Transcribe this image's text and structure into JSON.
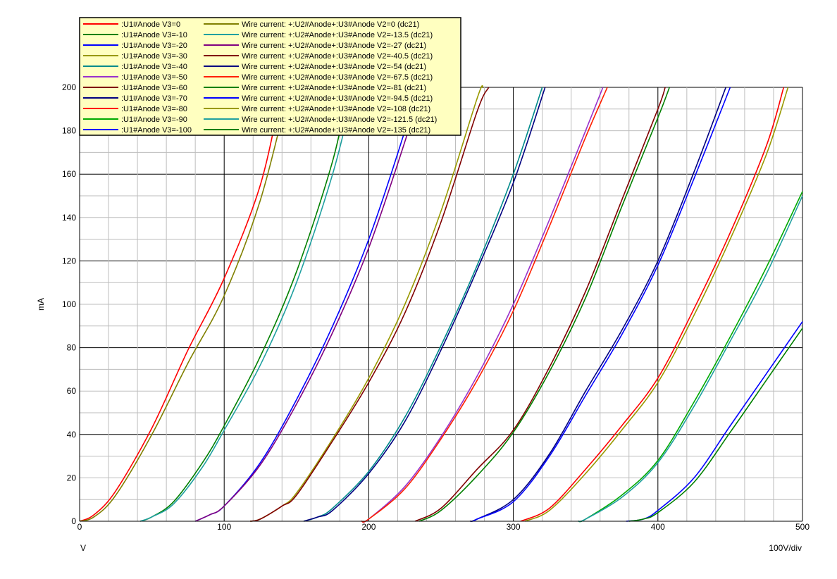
{
  "chart_data": {
    "type": "line",
    "xlabel": "V",
    "ylabel": "mA",
    "x_scale_note": "100V/div",
    "xlim": [
      0,
      500
    ],
    "ylim": [
      0,
      200
    ],
    "xticks": [
      0,
      100,
      200,
      300,
      400,
      500
    ],
    "yticks": [
      0,
      20,
      40,
      60,
      80,
      100,
      120,
      140,
      160,
      180,
      200
    ],
    "grid": true,
    "legend_position": "top-left",
    "legend_columns": [
      [
        {
          "label": ":U1#Anode V3=0",
          "color": "#ff0000"
        },
        {
          "label": ":U1#Anode V3=-10",
          "color": "#008000"
        },
        {
          "label": ":U1#Anode V3=-20",
          "color": "#0000ff"
        },
        {
          "label": ":U1#Anode V3=-30",
          "color": "#999900"
        },
        {
          "label": ":U1#Anode V3=-40",
          "color": "#008b8b"
        },
        {
          "label": ":U1#Anode V3=-50",
          "color": "#9932cc"
        },
        {
          "label": ":U1#Anode V3=-60",
          "color": "#800000"
        },
        {
          "label": ":U1#Anode V3=-70",
          "color": "#000080"
        },
        {
          "label": ":U1#Anode V3=-80",
          "color": "#ff0000"
        },
        {
          "label": ":U1#Anode V3=-90",
          "color": "#00aa00"
        },
        {
          "label": ":U1#Anode V3=-100",
          "color": "#0000ff"
        }
      ],
      [
        {
          "label": "Wire current: +:U2#Anode+:U3#Anode V2=0 (dc21)",
          "color": "#808000"
        },
        {
          "label": "Wire current: +:U2#Anode+:U3#Anode V2=-13.5 (dc21)",
          "color": "#20a0a0"
        },
        {
          "label": "Wire current: +:U2#Anode+:U3#Anode V2=-27 (dc21)",
          "color": "#800080"
        },
        {
          "label": "Wire current: +:U2#Anode+:U3#Anode V2=-40.5 (dc21)",
          "color": "#800000"
        },
        {
          "label": "Wire current: +:U2#Anode+:U3#Anode V2=-54 (dc21)",
          "color": "#000080"
        },
        {
          "label": "Wire current: +:U2#Anode+:U3#Anode V2=-67.5 (dc21)",
          "color": "#ff2000"
        },
        {
          "label": "Wire current: +:U2#Anode+:U3#Anode V2=-81 (dc21)",
          "color": "#008000"
        },
        {
          "label": "Wire current: +:U2#Anode+:U3#Anode V2=-94.5 (dc21)",
          "color": "#0000ff"
        },
        {
          "label": "Wire current: +:U2#Anode+:U3#Anode V2=-108 (dc21)",
          "color": "#999900"
        },
        {
          "label": "Wire current: +:U2#Anode+:U3#Anode V2=-121.5 (dc21)",
          "color": "#20a0a0"
        },
        {
          "label": "Wire current: +:U2#Anode+:U3#Anode V2=-135 (dc21)",
          "color": "#008000"
        }
      ]
    ],
    "curve_family_note": "Each curve starts at 0 mA at cutoff voltage x0 and rises roughly as a power law; points estimated from gridlines.",
    "series": [
      {
        "name": ":U1#Anode V3=0",
        "color": "#ff0000",
        "x": [
          0,
          10,
          25,
          50,
          75,
          100,
          125,
          140
        ],
        "y": [
          0,
          3,
          14,
          43,
          79,
          112,
          155,
          200
        ]
      },
      {
        "name": "Wire current: +:U2#Anode+:U3#Anode V2=0 (dc21)",
        "color": "#808000",
        "x": [
          0,
          10,
          25,
          50,
          75,
          100,
          125,
          145
        ],
        "y": [
          0,
          2,
          12,
          40,
          73,
          104,
          148,
          200
        ]
      },
      {
        "name": ":U1#Anode V3=-10",
        "color": "#008000",
        "x": [
          42,
          50,
          65,
          85,
          100,
          125,
          150,
          175,
          186
        ],
        "y": [
          0,
          2,
          9,
          27,
          44,
          76,
          115,
          166,
          200
        ]
      },
      {
        "name": "Wire current: +:U2#Anode+:U3#Anode V2=-13.5 (dc21)",
        "color": "#20a0a0",
        "x": [
          42,
          50,
          65,
          85,
          100,
          125,
          150,
          175,
          190
        ],
        "y": [
          0,
          2,
          8,
          25,
          42,
          72,
          110,
          160,
          200
        ]
      },
      {
        "name": ":U1#Anode V3=-20",
        "color": "#0000ff",
        "x": [
          80,
          90,
          100,
          125,
          150,
          175,
          200,
          225,
          233
        ],
        "y": [
          0,
          3,
          7,
          27,
          56,
          90,
          130,
          180,
          200
        ]
      },
      {
        "name": "Wire current: +:U2#Anode+:U3#Anode V2=-27 (dc21)",
        "color": "#800080",
        "x": [
          80,
          90,
          100,
          125,
          150,
          175,
          200,
          225,
          236
        ],
        "y": [
          0,
          3,
          7,
          26,
          54,
          87,
          126,
          175,
          200
        ]
      },
      {
        "name": ":U1#Anode V3=-30",
        "color": "#999900",
        "x": [
          118,
          125,
          140,
          150,
          175,
          200,
          225,
          250,
          275,
          279
        ],
        "y": [
          0,
          1,
          7,
          13,
          38,
          66,
          100,
          143,
          195,
          200
        ]
      },
      {
        "name": "Wire current: +:U2#Anode+:U3#Anode V2=-40.5 (dc21)",
        "color": "#800000",
        "x": [
          118,
          125,
          140,
          150,
          175,
          200,
          225,
          250,
          275,
          283
        ],
        "y": [
          0,
          1,
          7,
          12,
          37,
          64,
          96,
          138,
          189,
          200
        ]
      },
      {
        "name": ":U1#Anode V3=-40",
        "color": "#008b8b",
        "x": [
          155,
          165,
          175,
          200,
          225,
          250,
          275,
          300,
          320
        ],
        "y": [
          0,
          2,
          6,
          23,
          48,
          81,
          118,
          160,
          200
        ]
      },
      {
        "name": "Wire current: +:U2#Anode+:U3#Anode V2=-54 (dc21)",
        "color": "#000080",
        "x": [
          155,
          165,
          175,
          200,
          225,
          250,
          275,
          300,
          322
        ],
        "y": [
          0,
          2,
          5,
          22,
          46,
          79,
          116,
          156,
          200
        ]
      },
      {
        "name": ":U1#Anode V3=-50",
        "color": "#9932cc",
        "x": [
          195,
          200,
          225,
          250,
          275,
          300,
          325,
          350,
          362
        ],
        "y": [
          0,
          1,
          16,
          39,
          67,
          100,
          139,
          180,
          200
        ]
      },
      {
        "name": "Wire current: +:U2#Anode+:U3#Anode V2=-67.5 (dc21)",
        "color": "#ff2000",
        "x": [
          195,
          200,
          225,
          250,
          275,
          300,
          325,
          350,
          365
        ],
        "y": [
          0,
          1,
          15,
          38,
          65,
          97,
          136,
          177,
          200
        ]
      },
      {
        "name": ":U1#Anode V3=-60",
        "color": "#800000",
        "x": [
          232,
          250,
          275,
          300,
          325,
          350,
          375,
          400,
          405
        ],
        "y": [
          0,
          6,
          24,
          42,
          71,
          106,
          148,
          190,
          200
        ]
      },
      {
        "name": "Wire current: +:U2#Anode+:U3#Anode V2=-81 (dc21)",
        "color": "#008000",
        "x": [
          235,
          250,
          275,
          300,
          325,
          350,
          375,
          400,
          408
        ],
        "y": [
          0,
          5,
          21,
          41,
          69,
          103,
          145,
          186,
          200
        ]
      },
      {
        "name": ":U1#Anode V3=-70",
        "color": "#000080",
        "x": [
          270,
          275,
          300,
          325,
          350,
          375,
          400,
          425,
          447
        ],
        "y": [
          0,
          1,
          10,
          31,
          60,
          88,
          120,
          161,
          200
        ]
      },
      {
        "name": "Wire current: +:U2#Anode+:U3#Anode V2=-94.5 (dc21)",
        "color": "#0000ff",
        "x": [
          272,
          275,
          300,
          325,
          350,
          375,
          400,
          425,
          450
        ],
        "y": [
          0,
          1,
          9,
          30,
          58,
          86,
          118,
          158,
          200
        ]
      },
      {
        "name": ":U1#Anode V3=-80",
        "color": "#ff0000",
        "x": [
          305,
          325,
          350,
          375,
          400,
          425,
          450,
          475,
          487
        ],
        "y": [
          0,
          6,
          24,
          44,
          66,
          98,
          133,
          173,
          200
        ]
      },
      {
        "name": "Wire current: +:U2#Anode+:U3#Anode V2=-108 (dc21)",
        "color": "#999900",
        "x": [
          308,
          325,
          350,
          375,
          400,
          425,
          450,
          475,
          490
        ],
        "y": [
          0,
          5,
          22,
          42,
          64,
          95,
          130,
          169,
          200
        ]
      },
      {
        "name": ":U1#Anode V3=-90",
        "color": "#00aa00",
        "x": [
          345,
          350,
          375,
          400,
          425,
          450,
          475,
          500
        ],
        "y": [
          0,
          1,
          12,
          28,
          55,
          85,
          117,
          152
        ]
      },
      {
        "name": "Wire current: +:U2#Anode+:U3#Anode V2=-121.5 (dc21)",
        "color": "#20a0a0",
        "x": [
          345,
          350,
          375,
          400,
          425,
          450,
          475,
          500
        ],
        "y": [
          0,
          1,
          11,
          27,
          53,
          83,
          114,
          150
        ]
      },
      {
        "name": ":U1#Anode V3=-100",
        "color": "#0000ff",
        "x": [
          378,
          390,
          400,
          425,
          450,
          475,
          500
        ],
        "y": [
          0,
          1,
          5,
          20,
          44,
          68,
          92
        ]
      },
      {
        "name": "Wire current: +:U2#Anode+:U3#Anode V2=-135 (dc21)",
        "color": "#008000",
        "x": [
          380,
          390,
          400,
          425,
          450,
          475,
          500
        ],
        "y": [
          0,
          1,
          4,
          18,
          41,
          65,
          89
        ]
      }
    ]
  }
}
